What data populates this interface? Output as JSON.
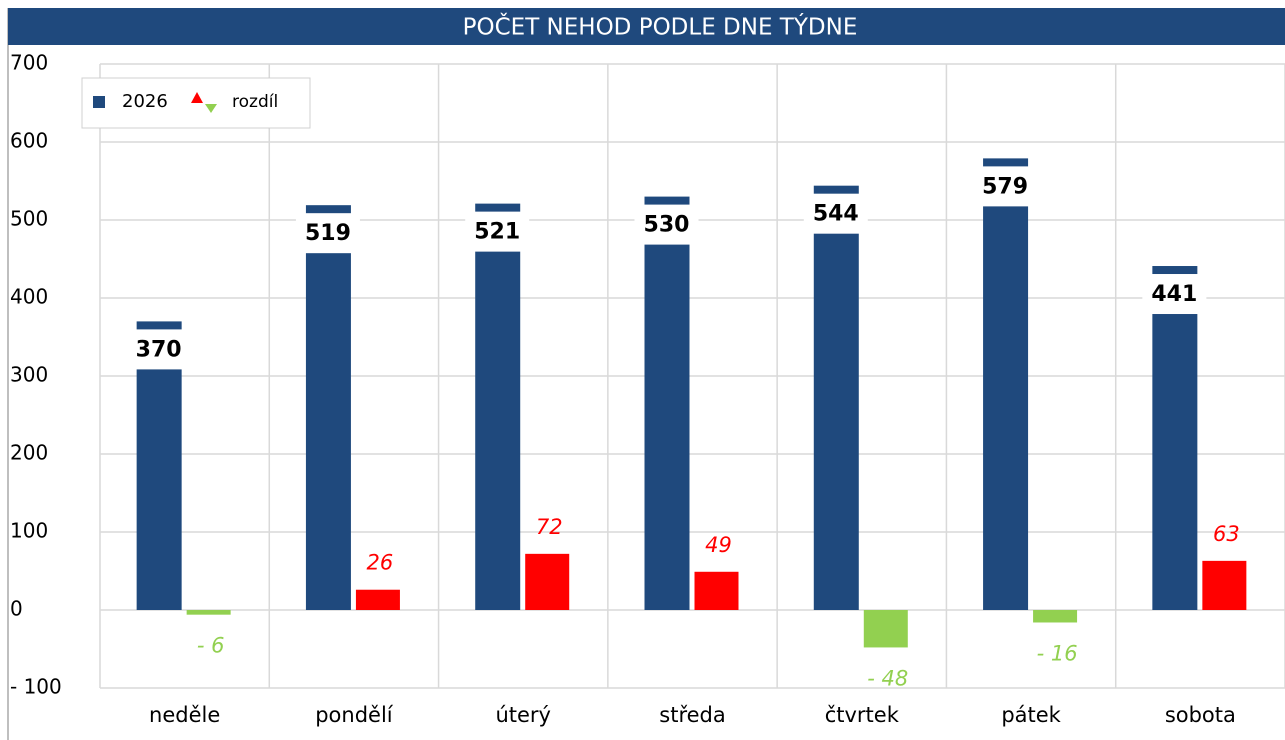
{
  "chart_data": {
    "type": "bar",
    "title": "POČET NEHOD PODLE DNE TÝDNE",
    "categories": [
      "neděle",
      "pondělí",
      "úterý",
      "středa",
      "čtvrtek",
      "pátek",
      "sobota"
    ],
    "series": [
      {
        "name": "2026",
        "color": "#1f497d",
        "values": [
          370,
          519,
          521,
          530,
          544,
          579,
          441
        ]
      },
      {
        "name": "rozdíl",
        "color": "#ff0000",
        "negative_color": "#92d050",
        "values": [
          -6,
          26,
          72,
          49,
          -48,
          -16,
          63
        ],
        "value_labels": [
          "- 6",
          "26",
          "72",
          "49",
          "- 48",
          "- 16",
          "63"
        ]
      }
    ],
    "ylim": [
      -100,
      700
    ],
    "yticks": [
      {
        "value": -100,
        "label": "- 100"
      },
      0,
      100,
      200,
      300,
      400,
      500,
      600,
      700
    ],
    "grid": true,
    "legend": "top-left"
  }
}
